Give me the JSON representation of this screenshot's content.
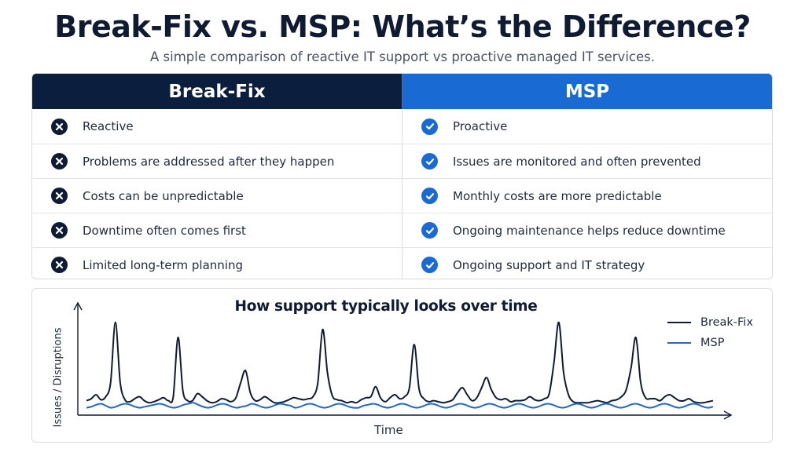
{
  "header": {
    "title": "Break-Fix vs. MSP: What’s the Difference?",
    "subtitle": "A simple comparison of reactive IT support vs proactive managed IT services."
  },
  "table": {
    "left_header": "Break-Fix",
    "right_header": "MSP",
    "left_icon": "x-circle-icon",
    "right_icon": "check-circle-icon",
    "left_color": "#0c1e3e",
    "right_color": "#1a6ad3",
    "left_rows": [
      "Reactive",
      "Problems are addressed after they happen",
      "Costs can be unpredictable",
      "Downtime often comes first",
      "Limited long-term planning"
    ],
    "right_rows": [
      "Proactive",
      "Issues are monitored and often prevented",
      "Monthly costs are more predictable",
      "Ongoing maintenance helps reduce downtime",
      "Ongoing support and IT strategy"
    ]
  },
  "chart_data": {
    "type": "line",
    "title": "How support typically looks over time",
    "xlabel": "Time",
    "ylabel": "Issues / Disruptions",
    "x_ticks": false,
    "y_ticks": false,
    "grid": false,
    "legend_position": "top-right",
    "ylim": [
      0,
      10
    ],
    "series": [
      {
        "name": "Break-Fix",
        "color": "#0f1b33",
        "values": [
          1.2,
          1.4,
          1.8,
          1.3,
          1.6,
          3.0,
          9.0,
          3.0,
          1.3,
          1.1,
          1.4,
          1.6,
          1.2,
          1.0,
          1.1,
          1.3,
          1.5,
          1.2,
          1.6,
          7.5,
          2.2,
          1.2,
          1.2,
          1.9,
          1.6,
          1.2,
          1.0,
          1.1,
          1.4,
          1.3,
          1.1,
          1.5,
          3.0,
          4.2,
          2.0,
          1.2,
          1.3,
          1.6,
          1.3,
          1.0,
          1.0,
          1.1,
          1.3,
          1.5,
          1.4,
          1.3,
          1.4,
          1.6,
          3.0,
          8.3,
          4.0,
          1.7,
          1.3,
          1.2,
          1.0,
          1.1,
          1.0,
          1.3,
          1.5,
          1.6,
          2.6,
          1.5,
          1.1,
          1.5,
          1.8,
          1.4,
          1.6,
          2.5,
          6.8,
          2.4,
          1.4,
          1.1,
          1.2,
          1.1,
          1.0,
          1.1,
          1.3,
          2.0,
          2.5,
          1.8,
          1.2,
          1.5,
          2.5,
          3.5,
          2.3,
          1.5,
          1.3,
          1.4,
          1.1,
          1.2,
          1.2,
          1.3,
          1.6,
          1.3,
          1.2,
          1.4,
          1.9,
          5.0,
          9.0,
          4.0,
          1.8,
          1.1,
          1.0,
          1.0,
          1.0,
          1.1,
          1.2,
          1.1,
          1.0,
          1.2,
          1.3,
          1.6,
          2.3,
          4.5,
          7.5,
          3.0,
          1.5,
          1.4,
          1.4,
          1.2,
          1.6,
          1.8,
          1.5,
          1.2,
          1.2,
          1.4,
          1.1,
          1.0,
          1.0,
          1.1,
          1.2
        ]
      },
      {
        "name": "MSP",
        "color": "#1a6ad3",
        "values": [
          0.5,
          0.6,
          0.8,
          0.9,
          0.7,
          0.5,
          0.6,
          0.8,
          0.9,
          0.8,
          0.6,
          0.5,
          0.6,
          0.7,
          0.8,
          0.9,
          0.8,
          0.6,
          0.5,
          0.6,
          0.8,
          0.9,
          1.0,
          0.8,
          0.6,
          0.5,
          0.6,
          0.8,
          0.9,
          0.8,
          0.6,
          0.5,
          0.6,
          0.7,
          0.9,
          0.8,
          0.6,
          0.5,
          0.6,
          0.8,
          0.9,
          0.8,
          0.7,
          0.5,
          0.6,
          0.8,
          0.9,
          0.8,
          0.6,
          0.5,
          0.6,
          0.8,
          0.9,
          0.8,
          0.6,
          0.5,
          0.5,
          0.7,
          0.8,
          0.9,
          0.8,
          0.6,
          0.5,
          0.6,
          0.8,
          0.9,
          0.8,
          0.6,
          0.5,
          0.6,
          0.8,
          0.9,
          0.8,
          0.6,
          0.5,
          0.6,
          0.8,
          0.9,
          0.8,
          0.6,
          0.5,
          0.6,
          0.8,
          0.9,
          0.8,
          0.6,
          0.5,
          0.6,
          0.8,
          0.9,
          0.8,
          0.6,
          0.5,
          0.6,
          0.8,
          0.9,
          0.8,
          0.6,
          0.5,
          0.6,
          0.8,
          0.9,
          0.8,
          0.6,
          0.5,
          0.6,
          0.8,
          0.9,
          0.8,
          0.6,
          0.5,
          0.6,
          0.8,
          0.9,
          0.8,
          0.6,
          0.5,
          0.6,
          0.8,
          0.9,
          0.8,
          0.6,
          0.5,
          0.6,
          0.8,
          0.9,
          0.8,
          0.6,
          0.5,
          0.6
        ]
      }
    ]
  }
}
